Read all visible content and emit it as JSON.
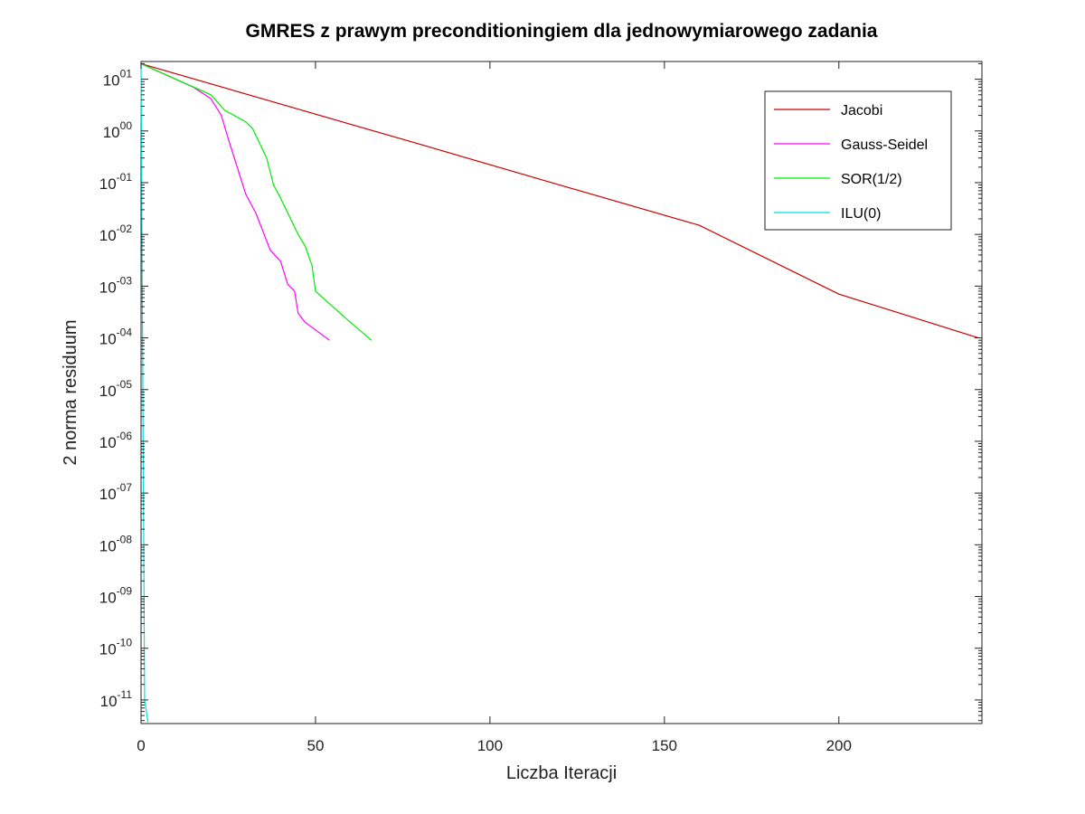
{
  "chart_data": {
    "type": "line",
    "title": "GMRES z prawym preconditioningiem dla jednowymiarowego zadania",
    "xlabel": "Liczba Iteracji",
    "ylabel": "2 norma residuum",
    "xlim": [
      0,
      241
    ],
    "ylim": [
      3.5e-12,
      22
    ],
    "yscale": "log",
    "grid": false,
    "legend_position": "top-right",
    "x_ticks": [
      0,
      50,
      100,
      150,
      200
    ],
    "x_tick_labels": [
      "0",
      "50",
      "100",
      "150",
      "200"
    ],
    "y_ticks": [
      {
        "value": 10.0,
        "base": "10",
        "exp": "01"
      },
      {
        "value": 1.0,
        "base": "10",
        "exp": "00"
      },
      {
        "value": 0.1,
        "base": "10",
        "exp": "-01"
      },
      {
        "value": 0.01,
        "base": "10",
        "exp": "-02"
      },
      {
        "value": 0.001,
        "base": "10",
        "exp": "-03"
      },
      {
        "value": 0.0001,
        "base": "10",
        "exp": "-04"
      },
      {
        "value": 1e-05,
        "base": "10",
        "exp": "-05"
      },
      {
        "value": 1e-06,
        "base": "10",
        "exp": "-06"
      },
      {
        "value": 1e-07,
        "base": "10",
        "exp": "-07"
      },
      {
        "value": 1e-08,
        "base": "10",
        "exp": "-08"
      },
      {
        "value": 1e-09,
        "base": "10",
        "exp": "-09"
      },
      {
        "value": 1e-10,
        "base": "10",
        "exp": "-10"
      },
      {
        "value": 1e-11,
        "base": "10",
        "exp": "-11"
      }
    ],
    "series": [
      {
        "name": "Jacobi",
        "color": "#cc0000",
        "points": [
          [
            0,
            20
          ],
          [
            40,
            3.3
          ],
          [
            80,
            0.55
          ],
          [
            120,
            0.09
          ],
          [
            160,
            0.015
          ],
          [
            200,
            0.0007
          ],
          [
            240,
            0.0001
          ]
        ]
      },
      {
        "name": "Gauss-Seidel",
        "color": "#ff00ff",
        "points": [
          [
            0,
            20
          ],
          [
            15,
            7
          ],
          [
            20,
            4.2
          ],
          [
            23,
            2.0
          ],
          [
            25,
            0.7
          ],
          [
            30,
            0.06
          ],
          [
            33,
            0.025
          ],
          [
            37,
            0.005
          ],
          [
            40,
            0.003
          ],
          [
            42,
            0.0011
          ],
          [
            44,
            0.0008
          ],
          [
            45,
            0.0003
          ],
          [
            47,
            0.0002
          ],
          [
            54,
            9e-05
          ]
        ]
      },
      {
        "name": "SOR(1/2)",
        "color": "#00ee00",
        "points": [
          [
            0,
            20
          ],
          [
            20,
            5
          ],
          [
            24,
            2.5
          ],
          [
            30,
            1.5
          ],
          [
            32,
            1.1
          ],
          [
            36,
            0.3
          ],
          [
            38,
            0.09
          ],
          [
            40,
            0.05
          ],
          [
            45,
            0.01
          ],
          [
            47,
            0.006
          ],
          [
            49,
            0.0025
          ],
          [
            50,
            0.0008
          ],
          [
            60,
            0.0002
          ],
          [
            66,
            9e-05
          ]
        ]
      },
      {
        "name": "ILU(0)",
        "color": "#00dddd",
        "points": [
          [
            0,
            20
          ],
          [
            1,
            1e-11
          ],
          [
            2,
            3.7e-12
          ]
        ]
      }
    ]
  }
}
